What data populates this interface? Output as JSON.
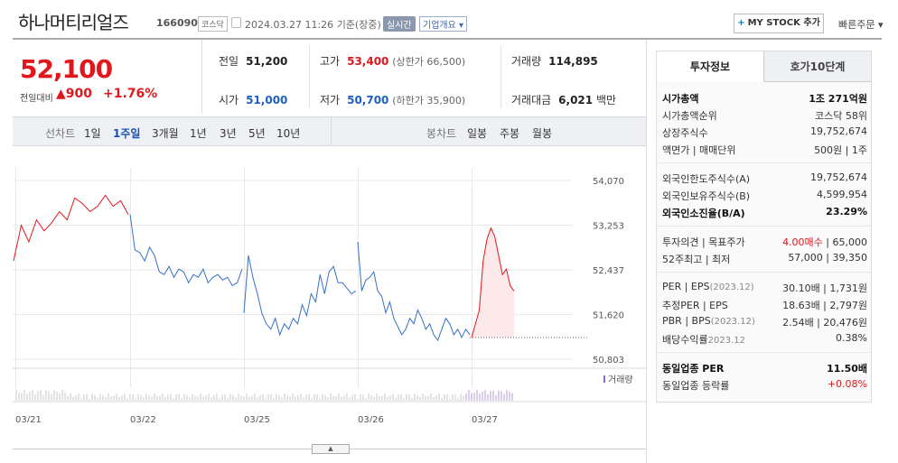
{
  "header": {
    "name": "하나머티리얼즈",
    "code": "166090",
    "market": "코스닥",
    "timestamp": "2024.03.27 11:26",
    "basis": "기준(장중)",
    "realtime": "실시간",
    "company_info": "기업개요 ▾",
    "mystock_label": "MY STOCK 추가",
    "quick_order": "빠른주문 ▾"
  },
  "price": {
    "current": "52,100",
    "compare_label": "전일대비",
    "change": "▲900",
    "change_pct": "+1.76%"
  },
  "stats": {
    "prev_label": "전일",
    "prev_value": "51,200",
    "open_label": "시가",
    "open_value": "51,000",
    "high_label": "고가",
    "high_value": "53,400",
    "upper_limit": "(상한가 66,500)",
    "low_label": "저가",
    "low_value": "50,700",
    "lower_limit": "(하한가 35,900)",
    "volume_label": "거래량",
    "volume_value": "114,895",
    "amount_label": "거래대금",
    "amount_value": "6,021",
    "amount_unit": "백만"
  },
  "period_bar": {
    "line_label": "선차트",
    "periods": [
      "1일",
      "1주일",
      "3개월",
      "1년",
      "3년",
      "5년",
      "10년"
    ],
    "selected": "1주일",
    "candle_label": "봉차트",
    "candles": [
      "일봉",
      "주봉",
      "월봉"
    ]
  },
  "chart_data": {
    "type": "line",
    "y_ticks": [
      "54,070",
      "53,253",
      "52,437",
      "51,620",
      "50,803"
    ],
    "ylim": [
      50803,
      54070
    ],
    "x_ticks": [
      "03/21",
      "03/22",
      "03/25",
      "03/26",
      "03/27"
    ],
    "volume_label": "거래량",
    "prev_close": 51200,
    "grid": true,
    "series": [
      {
        "values": [
          52600,
          53250,
          52950,
          53350,
          53150,
          53300,
          53500,
          53350,
          53750,
          53650,
          53500,
          53600,
          53800,
          53600,
          53700,
          53450
        ]
      },
      {
        "values": [
          53450,
          52800,
          52750,
          52600,
          52850,
          52700,
          52400,
          52350,
          52500,
          52300,
          52450,
          52400,
          52200,
          52350,
          52300,
          52450,
          52200,
          52300,
          52350,
          52250,
          52300,
          52150,
          52200,
          52450
        ]
      },
      {
        "values": [
          51650,
          52700,
          52300,
          52000,
          51650,
          51450,
          51350,
          51550,
          51250,
          51450,
          51350,
          51550,
          51450,
          51800,
          51600,
          52000,
          51850,
          52350,
          52000,
          52400,
          52500,
          52200,
          52200,
          52100,
          52000,
          52050
        ]
      },
      {
        "values": [
          52950,
          52050,
          52250,
          52300,
          52400,
          52050,
          51950,
          51650,
          51850,
          51550,
          51400,
          51250,
          51350,
          51550,
          51450,
          51700,
          51550,
          51350,
          51450,
          51250,
          51150,
          51350,
          51550,
          51450,
          51250,
          51350,
          51200,
          51350,
          51250
        ]
      },
      {
        "name": "up",
        "values": [
          51200,
          51450,
          51700,
          52600,
          53000,
          53200,
          53050,
          52700,
          52350,
          52450,
          52150,
          52050
        ]
      }
    ]
  },
  "side_panel": {
    "tab_on": "투자정보",
    "tab_off": "호가10단계",
    "rows1": [
      {
        "l": "시가총액",
        "r": "1조 271억원",
        "bold": true
      },
      {
        "l": "시가총액순위",
        "r": "코스닥 58위"
      },
      {
        "l": "상장주식수",
        "r": "19,752,674"
      },
      {
        "l": "액면가 | 매매단위",
        "r": "500원 | 1주"
      }
    ],
    "rows2": [
      {
        "l": "외국인한도주식수(A)",
        "r": "19,752,674"
      },
      {
        "l": "외국인보유주식수(B)",
        "r": "4,599,954"
      },
      {
        "l": "외국인소진율(B/A)",
        "r": "23.29%",
        "bold": true
      }
    ],
    "rows3": [
      {
        "l": "투자의견 | 목표주가",
        "r_up": "4.00매수",
        "r": " | 65,000"
      },
      {
        "l": "52주최고 | 최저",
        "r": "57,000 | 39,350"
      }
    ],
    "rows4": [
      {
        "l": "PER | EPS",
        "l_sm": "(2023.12)",
        "r": "30.10배 | 1,731원"
      },
      {
        "l": "추정PER | EPS",
        "r": "18.63배 | 2,797원"
      },
      {
        "l": "PBR | BPS",
        "l_sm": "(2023.12)",
        "r": "2.54배 | 20,476원"
      },
      {
        "l": "배당수익률",
        "l_sm": "2023.12",
        "r": "0.38%"
      }
    ],
    "rows5": [
      {
        "l": "동일업종 PER",
        "r": "11.50배",
        "bold": true
      },
      {
        "l": "동일업종 등락률",
        "r": "+0.08%",
        "up": true
      }
    ]
  },
  "colors": {
    "up": "#e0171c",
    "down": "#1f5ec4",
    "line": "#3570c8"
  }
}
